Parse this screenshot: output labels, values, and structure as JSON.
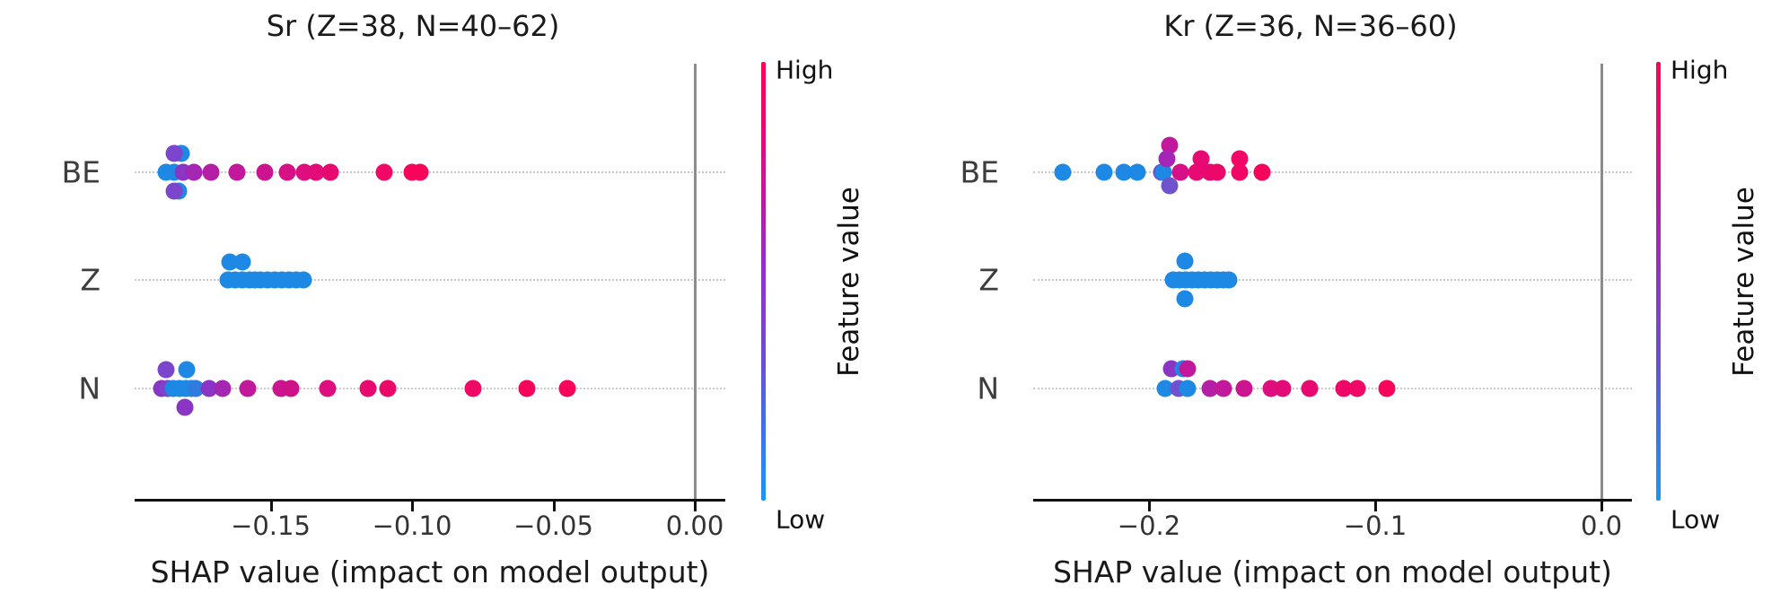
{
  "figure": {
    "background": "#ffffff",
    "text_color": "#1a1a1a",
    "grid_color": "#c9c9c9",
    "zero_line_color": "#8c8c8c",
    "axis_color": "#111111"
  },
  "chart_data": [
    {
      "type": "scatter",
      "variant": "shap-beeswarm",
      "title": "Sr (Z=38, N=40–62)",
      "xlabel": "SHAP value (impact on model output)",
      "rows": [
        "BE",
        "Z",
        "N"
      ],
      "xlim": [
        -0.198,
        0.011
      ],
      "grid": "dotted-row-lines",
      "zero_line": 0.0,
      "x_ticks": [
        {
          "value": -0.15,
          "label": "−0.15"
        },
        {
          "value": -0.1,
          "label": "−0.10"
        },
        {
          "value": -0.05,
          "label": "−0.05"
        },
        {
          "value": 0.0,
          "label": "0.00"
        }
      ],
      "colorbar": {
        "high_label": "High",
        "low_label": "Low",
        "axis_label": "Feature value",
        "gradient": [
          "#FA0357",
          "#E30C77",
          "#B11FA9",
          "#8F35C5",
          "#6E4DD0",
          "#3F74E3",
          "#1B96F2"
        ]
      },
      "points": [
        {
          "row": "BE",
          "x": -0.187,
          "c": "#1E88E5",
          "dy": 0
        },
        {
          "row": "BE",
          "x": -0.184,
          "c": "#1E88E5",
          "dy": 0
        },
        {
          "row": "BE",
          "x": -0.181,
          "c": "#8A35C4",
          "dy": 0
        },
        {
          "row": "BE",
          "x": -0.177,
          "c": "#A427B4",
          "dy": 0
        },
        {
          "row": "BE",
          "x": -0.171,
          "c": "#B51FA6",
          "dy": 0
        },
        {
          "row": "BE",
          "x": -0.162,
          "c": "#C2189B",
          "dy": 0
        },
        {
          "row": "BE",
          "x": -0.152,
          "c": "#CC1490",
          "dy": 0
        },
        {
          "row": "BE",
          "x": -0.144,
          "c": "#D81085",
          "dy": 0
        },
        {
          "row": "BE",
          "x": -0.138,
          "c": "#DE0E7E",
          "dy": 0
        },
        {
          "row": "BE",
          "x": -0.134,
          "c": "#E20C79",
          "dy": 0
        },
        {
          "row": "BE",
          "x": -0.129,
          "c": "#E80970",
          "dy": 0
        },
        {
          "row": "BE",
          "x": -0.11,
          "c": "#F10765",
          "dy": 0
        },
        {
          "row": "BE",
          "x": -0.1,
          "c": "#F6055D",
          "dy": 0
        },
        {
          "row": "BE",
          "x": -0.097,
          "c": "#F8045A",
          "dy": 0
        },
        {
          "row": "BE",
          "x": -0.1815,
          "c": "#1E88E5",
          "dy": -21
        },
        {
          "row": "BE",
          "x": -0.184,
          "c": "#7B45CC",
          "dy": -21
        },
        {
          "row": "BE",
          "x": -0.1825,
          "c": "#1E88E5",
          "dy": 21
        },
        {
          "row": "BE",
          "x": -0.184,
          "c": "#7B45CC",
          "dy": 21
        },
        {
          "row": "Z",
          "x": -0.165,
          "c": "#1E88E5",
          "dy": 0
        },
        {
          "row": "Z",
          "x": -0.1625,
          "c": "#1E88E5",
          "dy": 0
        },
        {
          "row": "Z",
          "x": -0.16,
          "c": "#1E88E5",
          "dy": 0
        },
        {
          "row": "Z",
          "x": -0.1575,
          "c": "#1E88E5",
          "dy": 0
        },
        {
          "row": "Z",
          "x": -0.1555,
          "c": "#1E88E5",
          "dy": 0
        },
        {
          "row": "Z",
          "x": -0.1535,
          "c": "#1E88E5",
          "dy": 0
        },
        {
          "row": "Z",
          "x": -0.151,
          "c": "#1E88E5",
          "dy": 0
        },
        {
          "row": "Z",
          "x": -0.1485,
          "c": "#1E88E5",
          "dy": 0
        },
        {
          "row": "Z",
          "x": -0.146,
          "c": "#1E88E5",
          "dy": 0
        },
        {
          "row": "Z",
          "x": -0.1435,
          "c": "#1E88E5",
          "dy": 0
        },
        {
          "row": "Z",
          "x": -0.141,
          "c": "#1E88E5",
          "dy": 0
        },
        {
          "row": "Z",
          "x": -0.1385,
          "c": "#1E88E5",
          "dy": 0
        },
        {
          "row": "Z",
          "x": -0.1645,
          "c": "#1E88E5",
          "dy": -20
        },
        {
          "row": "Z",
          "x": -0.16,
          "c": "#1E88E5",
          "dy": -20
        },
        {
          "row": "N",
          "x": -0.1886,
          "c": "#8A35C4",
          "dy": 0
        },
        {
          "row": "N",
          "x": -0.1863,
          "c": "#7B45CC",
          "dy": 0
        },
        {
          "row": "N",
          "x": -0.1844,
          "c": "#1E88E5",
          "dy": 0
        },
        {
          "row": "N",
          "x": -0.1822,
          "c": "#1E88E5",
          "dy": 0
        },
        {
          "row": "N",
          "x": -0.18,
          "c": "#1E88E5",
          "dy": 0
        },
        {
          "row": "N",
          "x": -0.178,
          "c": "#1E88E5",
          "dy": 0
        },
        {
          "row": "N",
          "x": -0.1765,
          "c": "#2F7CDE",
          "dy": 0
        },
        {
          "row": "N",
          "x": -0.1717,
          "c": "#8A35C4",
          "dy": 0
        },
        {
          "row": "N",
          "x": -0.167,
          "c": "#A427B4",
          "dy": 0
        },
        {
          "row": "N",
          "x": -0.158,
          "c": "#C2189B",
          "dy": 0
        },
        {
          "row": "N",
          "x": -0.1463,
          "c": "#CC1490",
          "dy": 0
        },
        {
          "row": "N",
          "x": -0.1429,
          "c": "#D01289",
          "dy": 0
        },
        {
          "row": "N",
          "x": -0.13,
          "c": "#DE0E7E",
          "dy": 0
        },
        {
          "row": "N",
          "x": -0.1156,
          "c": "#E80970",
          "dy": 0
        },
        {
          "row": "N",
          "x": -0.1086,
          "c": "#EC0869",
          "dy": 0
        },
        {
          "row": "N",
          "x": -0.0784,
          "c": "#F10765",
          "dy": 0
        },
        {
          "row": "N",
          "x": -0.0594,
          "c": "#F6055D",
          "dy": 0
        },
        {
          "row": "N",
          "x": -0.0451,
          "c": "#F8045A",
          "dy": 0
        },
        {
          "row": "N",
          "x": -0.187,
          "c": "#7B45CC",
          "dy": -21
        },
        {
          "row": "N",
          "x": -0.1797,
          "c": "#1E88E5",
          "dy": -21
        },
        {
          "row": "N",
          "x": -0.1803,
          "c": "#8A35C4",
          "dy": 21
        }
      ]
    },
    {
      "type": "scatter",
      "variant": "shap-beeswarm",
      "title": "Kr (Z=36, N=36–60)",
      "xlabel": "SHAP value (impact on model output)",
      "rows": [
        "BE",
        "Z",
        "N"
      ],
      "xlim": [
        -0.2512,
        0.0135
      ],
      "grid": "dotted-row-lines",
      "zero_line": 0.0,
      "x_ticks": [
        {
          "value": -0.2,
          "label": "−0.2"
        },
        {
          "value": -0.1,
          "label": "−0.1"
        },
        {
          "value": 0.0,
          "label": "0.0"
        }
      ],
      "colorbar": {
        "high_label": "High",
        "low_label": "Low",
        "axis_label": "Feature value",
        "gradient": [
          "#FA0357",
          "#E30C77",
          "#B11FA9",
          "#8F35C5",
          "#6E4DD0",
          "#3F74E3",
          "#1B96F2"
        ]
      },
      "points": [
        {
          "row": "BE",
          "x": -0.238,
          "c": "#1E88E5",
          "dy": 0
        },
        {
          "row": "BE",
          "x": -0.22,
          "c": "#1E88E5",
          "dy": 0
        },
        {
          "row": "BE",
          "x": -0.211,
          "c": "#1E88E5",
          "dy": 0
        },
        {
          "row": "BE",
          "x": -0.205,
          "c": "#1E88E5",
          "dy": 0
        },
        {
          "row": "BE",
          "x": -0.1945,
          "c": "#7B45CC",
          "dy": 0
        },
        {
          "row": "BE",
          "x": -0.1935,
          "c": "#1E88E5",
          "dy": 0
        },
        {
          "row": "BE",
          "x": -0.191,
          "c": "#C2189B",
          "dy": -30
        },
        {
          "row": "BE",
          "x": -0.192,
          "c": "#A326B6",
          "dy": -15
        },
        {
          "row": "BE",
          "x": -0.191,
          "c": "#7052CE",
          "dy": 15
        },
        {
          "row": "BE",
          "x": -0.186,
          "c": "#D81085",
          "dy": 0
        },
        {
          "row": "BE",
          "x": -0.179,
          "c": "#E60A72",
          "dy": 0
        },
        {
          "row": "BE",
          "x": -0.177,
          "c": "#E60A72",
          "dy": -15
        },
        {
          "row": "BE",
          "x": -0.173,
          "c": "#E80970",
          "dy": 0
        },
        {
          "row": "BE",
          "x": -0.17,
          "c": "#EC0869",
          "dy": 0
        },
        {
          "row": "BE",
          "x": -0.16,
          "c": "#F10765",
          "dy": -15
        },
        {
          "row": "BE",
          "x": -0.16,
          "c": "#F10765",
          "dy": 0
        },
        {
          "row": "BE",
          "x": -0.15,
          "c": "#F8045A",
          "dy": 0
        },
        {
          "row": "Z",
          "x": -0.1893,
          "c": "#1E88E5",
          "dy": 0
        },
        {
          "row": "Z",
          "x": -0.1866,
          "c": "#1E88E5",
          "dy": 0
        },
        {
          "row": "Z",
          "x": -0.1838,
          "c": "#1E88E5",
          "dy": 0
        },
        {
          "row": "Z",
          "x": -0.181,
          "c": "#1E88E5",
          "dy": 0
        },
        {
          "row": "Z",
          "x": -0.1783,
          "c": "#1E88E5",
          "dy": 0
        },
        {
          "row": "Z",
          "x": -0.1755,
          "c": "#1E88E5",
          "dy": 0
        },
        {
          "row": "Z",
          "x": -0.1727,
          "c": "#1E88E5",
          "dy": 0
        },
        {
          "row": "Z",
          "x": -0.17,
          "c": "#1E88E5",
          "dy": 0
        },
        {
          "row": "Z",
          "x": -0.167,
          "c": "#1E88E5",
          "dy": 0
        },
        {
          "row": "Z",
          "x": -0.1645,
          "c": "#1E88E5",
          "dy": 0
        },
        {
          "row": "Z",
          "x": -0.184,
          "c": "#1E88E5",
          "dy": -21
        },
        {
          "row": "Z",
          "x": -0.184,
          "c": "#1E88E5",
          "dy": 21
        },
        {
          "row": "N",
          "x": -0.193,
          "c": "#1E88E5",
          "dy": 0
        },
        {
          "row": "N",
          "x": -0.187,
          "c": "#7052CE",
          "dy": 0
        },
        {
          "row": "N",
          "x": -0.183,
          "c": "#1E88E5",
          "dy": 0
        },
        {
          "row": "N",
          "x": -0.173,
          "c": "#B51FA6",
          "dy": 0
        },
        {
          "row": "N",
          "x": -0.167,
          "c": "#C2189B",
          "dy": 0
        },
        {
          "row": "N",
          "x": -0.158,
          "c": "#CC1490",
          "dy": 0
        },
        {
          "row": "N",
          "x": -0.146,
          "c": "#DE0E7E",
          "dy": 0
        },
        {
          "row": "N",
          "x": -0.141,
          "c": "#E20C79",
          "dy": 0
        },
        {
          "row": "N",
          "x": -0.129,
          "c": "#E80970",
          "dy": 0
        },
        {
          "row": "N",
          "x": -0.114,
          "c": "#EE0766",
          "dy": 0
        },
        {
          "row": "N",
          "x": -0.108,
          "c": "#F10765",
          "dy": 0
        },
        {
          "row": "N",
          "x": -0.095,
          "c": "#F8045A",
          "dy": 0
        },
        {
          "row": "N",
          "x": -0.19,
          "c": "#8A35C4",
          "dy": -22
        },
        {
          "row": "N",
          "x": -0.185,
          "c": "#1E88E5",
          "dy": -22
        },
        {
          "row": "N",
          "x": -0.183,
          "c": "#C2189B",
          "dy": -22
        }
      ]
    }
  ]
}
